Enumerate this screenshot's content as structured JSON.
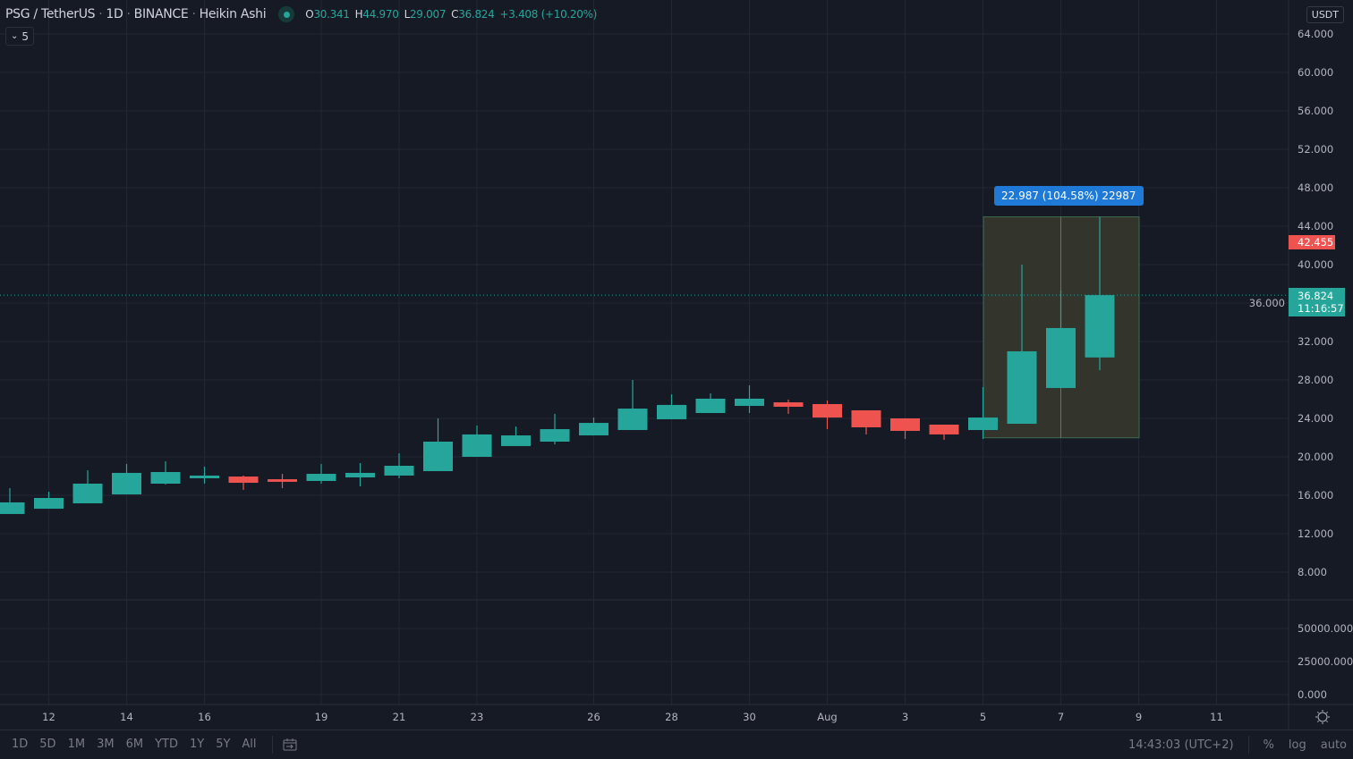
{
  "header": {
    "symbol": "PSG / TetherUS",
    "interval": "1D",
    "exchange": "BINANCE",
    "chart_style": "Heikin Ashi",
    "ohlc": {
      "o_label": "O",
      "o": "30.341",
      "h_label": "H",
      "h": "44.970",
      "l_label": "L",
      "l": "29.007",
      "c_label": "C",
      "c": "36.824",
      "change": "+3.408 (+10.20%)"
    },
    "collapse_count": "5"
  },
  "currency_badge": "USDT",
  "measure_label": "22.987 (104.58%) 22987",
  "price_tags": {
    "high_marker": "42.455",
    "last_price": "36.824",
    "countdown": "11:16:57"
  },
  "colors": {
    "up": "#26a69a",
    "down": "#ef5350",
    "background": "#161a25",
    "grid": "#232734",
    "measure_fill": "#33342c",
    "measure_label": "#1e7ad6"
  },
  "bottom": {
    "ranges": [
      "1D",
      "5D",
      "1M",
      "3M",
      "6M",
      "YTD",
      "1Y",
      "5Y",
      "All"
    ],
    "time": "14:43:03 (UTC+2)",
    "percent": "%",
    "log": "log",
    "auto": "auto"
  },
  "chart_data": {
    "type": "candlestick",
    "style": "Heikin Ashi",
    "grid": true,
    "y_ticks": [
      "64.000",
      "60.000",
      "56.000",
      "52.000",
      "48.000",
      "44.000",
      "40.000",
      "36.000",
      "32.000",
      "28.000",
      "24.000",
      "20.000",
      "16.000",
      "12.000",
      "8.000"
    ],
    "ylim": [
      8,
      64
    ],
    "volume_ticks": [
      "50000.000",
      "25000.000",
      "0.000"
    ],
    "x_ticks": [
      {
        "day": 12,
        "label": "12"
      },
      {
        "day": 14,
        "label": "14"
      },
      {
        "day": 16,
        "label": "16"
      },
      {
        "day": 19,
        "label": "19"
      },
      {
        "day": 21,
        "label": "21"
      },
      {
        "day": 23,
        "label": "23"
      },
      {
        "day": 26,
        "label": "26"
      },
      {
        "day": 28,
        "label": "28"
      },
      {
        "day": 30,
        "label": "30"
      },
      {
        "day": 32,
        "label": "Aug"
      },
      {
        "day": 34,
        "label": "3"
      },
      {
        "day": 36,
        "label": "5"
      },
      {
        "day": 38,
        "label": "7"
      },
      {
        "day": 40,
        "label": "9"
      },
      {
        "day": 42,
        "label": "11"
      }
    ],
    "candles": [
      {
        "date": "Jul 11",
        "o": 14.05,
        "h": 16.74,
        "l": 14.05,
        "c": 15.26
      },
      {
        "date": "Jul 12",
        "o": 14.6,
        "h": 16.37,
        "l": 14.6,
        "c": 15.72
      },
      {
        "date": "Jul 13",
        "o": 15.16,
        "h": 18.6,
        "l": 15.16,
        "c": 17.21
      },
      {
        "date": "Jul 14",
        "o": 16.09,
        "h": 19.26,
        "l": 16.09,
        "c": 18.33
      },
      {
        "date": "Jul 15",
        "o": 17.21,
        "h": 19.53,
        "l": 17.12,
        "c": 18.42
      },
      {
        "date": "Jul 16",
        "o": 17.77,
        "h": 18.98,
        "l": 17.21,
        "c": 18.05
      },
      {
        "date": "Jul 17",
        "o": 17.95,
        "h": 18.05,
        "l": 16.56,
        "c": 17.3
      },
      {
        "date": "Jul 18",
        "o": 17.67,
        "h": 18.23,
        "l": 16.74,
        "c": 17.4
      },
      {
        "date": "Jul 19",
        "o": 17.49,
        "h": 19.26,
        "l": 17.21,
        "c": 18.23
      },
      {
        "date": "Jul 20",
        "o": 17.86,
        "h": 19.35,
        "l": 16.93,
        "c": 18.33
      },
      {
        "date": "Jul 21",
        "o": 18.05,
        "h": 20.37,
        "l": 17.77,
        "c": 19.07
      },
      {
        "date": "Jul 22",
        "o": 18.51,
        "h": 24.0,
        "l": 18.51,
        "c": 21.58
      },
      {
        "date": "Jul 23",
        "o": 20.0,
        "h": 23.26,
        "l": 20.0,
        "c": 22.33
      },
      {
        "date": "Jul 24",
        "o": 21.12,
        "h": 23.16,
        "l": 21.12,
        "c": 22.23
      },
      {
        "date": "Jul 25",
        "o": 21.58,
        "h": 24.47,
        "l": 21.3,
        "c": 22.88
      },
      {
        "date": "Jul 26",
        "o": 22.23,
        "h": 24.09,
        "l": 22.23,
        "c": 23.53
      },
      {
        "date": "Jul 27",
        "o": 22.79,
        "h": 28.0,
        "l": 22.79,
        "c": 25.02
      },
      {
        "date": "Jul 28",
        "o": 23.91,
        "h": 26.51,
        "l": 23.91,
        "c": 25.4
      },
      {
        "date": "Jul 29",
        "o": 24.56,
        "h": 26.6,
        "l": 24.56,
        "c": 26.05
      },
      {
        "date": "Jul 30",
        "o": 25.3,
        "h": 27.44,
        "l": 24.56,
        "c": 26.05
      },
      {
        "date": "Jul 31",
        "o": 25.67,
        "h": 25.95,
        "l": 24.47,
        "c": 25.21
      },
      {
        "date": "Aug 1",
        "o": 25.49,
        "h": 25.86,
        "l": 22.88,
        "c": 24.09
      },
      {
        "date": "Aug 2",
        "o": 24.84,
        "h": 24.84,
        "l": 22.33,
        "c": 23.07
      },
      {
        "date": "Aug 3",
        "o": 24.0,
        "h": 24.0,
        "l": 21.86,
        "c": 22.7
      },
      {
        "date": "Aug 4",
        "o": 23.35,
        "h": 23.35,
        "l": 21.77,
        "c": 22.33
      },
      {
        "date": "Aug 5",
        "o": 22.79,
        "h": 27.26,
        "l": 21.86,
        "c": 24.09
      },
      {
        "date": "Aug 6",
        "o": 23.44,
        "h": 40.0,
        "l": 23.44,
        "c": 30.98
      },
      {
        "date": "Aug 7",
        "o": 27.16,
        "h": 37.3,
        "l": 27.16,
        "c": 33.4
      },
      {
        "date": "Aug 8",
        "o": 30.341,
        "h": 44.97,
        "l": 29.007,
        "c": 36.824
      }
    ],
    "measure": {
      "from_date": "Aug 5",
      "to_date": "Aug 9",
      "low": 21.98,
      "high": 44.97
    }
  }
}
